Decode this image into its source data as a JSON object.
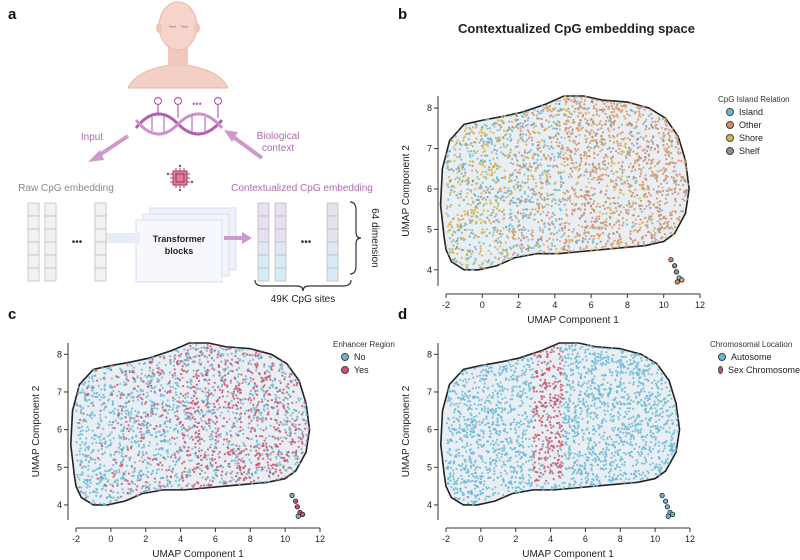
{
  "panels": {
    "a": {
      "label": "a",
      "input_label": "Input",
      "bio_label_line1": "Biological",
      "bio_label_line2": "context",
      "raw_label": "Raw CpG embedding",
      "ctx_label": "Contextualized CpG embedding",
      "transformer_line1": "Transformer",
      "transformer_line2": "blocks",
      "dimension_label": "64 dimension",
      "sites_label": "49K CpG sites",
      "ellipsis": "•••",
      "dna_dots": "•••"
    },
    "b": {
      "label": "b",
      "title": "Contextualized CpG embedding space",
      "legend_title": "CpG Island Relation",
      "legend": [
        {
          "name": "Island",
          "color": "#6bb7d6"
        },
        {
          "name": "Other",
          "color": "#d58a6a"
        },
        {
          "name": "Shore",
          "color": "#d6b24a"
        },
        {
          "name": "Shelf",
          "color": "#8f8f8f"
        }
      ]
    },
    "c": {
      "label": "c",
      "legend_title": "Enhancer Region",
      "legend": [
        {
          "name": "No",
          "color": "#6bb7d6"
        },
        {
          "name": "Yes",
          "color": "#c8556f"
        }
      ]
    },
    "d": {
      "label": "d",
      "legend_title": "Chromosomal Location",
      "legend": [
        {
          "name": "Autosome",
          "color": "#6bb7d6"
        },
        {
          "name": "Sex Chromosome",
          "color": "#c8556f"
        }
      ]
    }
  },
  "chart_data": [
    {
      "type": "scatter",
      "panel": "b",
      "xlabel": "UMAP Component 1",
      "ylabel": "UMAP Component 2",
      "xticks": [
        -2,
        0,
        2,
        4,
        6,
        8,
        10,
        12
      ],
      "yticks": [
        4,
        5,
        6,
        7,
        8
      ],
      "xlim": [
        -2,
        12
      ],
      "ylim": [
        3.6,
        8.3
      ]
    },
    {
      "type": "scatter",
      "panel": "c",
      "xlabel": "UMAP Component 1",
      "ylabel": "UMAP Component 2",
      "xticks": [
        -2,
        0,
        2,
        4,
        6,
        8,
        10,
        12
      ],
      "yticks": [
        4,
        5,
        6,
        7,
        8
      ],
      "xlim": [
        -2,
        12
      ],
      "ylim": [
        3.6,
        8.3
      ]
    },
    {
      "type": "scatter",
      "panel": "d",
      "xlabel": "UMAP Component 1",
      "ylabel": "UMAP Component 2",
      "xticks": [
        -2,
        0,
        2,
        4,
        6,
        8,
        10,
        12
      ],
      "yticks": [
        4,
        5,
        6,
        7,
        8
      ],
      "xlim": [
        -2,
        12
      ],
      "ylim": [
        3.6,
        8.3
      ]
    }
  ]
}
